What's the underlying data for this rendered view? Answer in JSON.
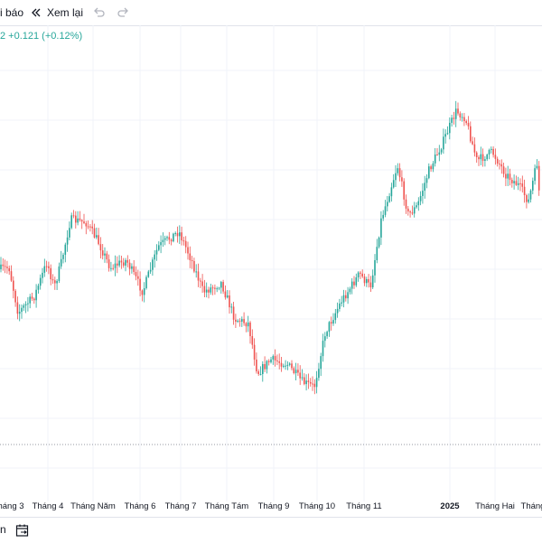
{
  "toolbar": {
    "alert_label": "i báo",
    "replay_label": "Xem lại",
    "undo_icon": "undo-icon",
    "redo_icon": "redo-icon",
    "replay_icon": "rewind-icon"
  },
  "quote": {
    "text": "2  +0.121 (+0.12%)"
  },
  "colors": {
    "up": "#26a69a",
    "down": "#ef5350",
    "grid": "#f0f3fa",
    "text": "#131722"
  },
  "x_axis": {
    "labels": [
      "háng 3",
      "Tháng 4",
      "Tháng Năm",
      "Tháng 6",
      "Tháng 7",
      "Tháng Tám",
      "Tháng 9",
      "Tháng 10",
      "Tháng 11",
      "2025",
      "Tháng Hai",
      "Tháng"
    ]
  },
  "bottom": {
    "icon": "calendar-range-icon"
  },
  "chart_data": {
    "type": "candlestick",
    "trend": [
      [
        "Tháng 3",
        300
      ],
      [
        "Tháng 3",
        340
      ],
      [
        "Tháng 4",
        300
      ],
      [
        "Tháng 4",
        250
      ],
      [
        "Tháng 4",
        215
      ],
      [
        "Tháng Năm",
        240
      ],
      [
        "Tháng Năm",
        280
      ],
      [
        "Tháng 6",
        290
      ],
      [
        "Tháng 6",
        260
      ],
      [
        "Tháng 7",
        230
      ],
      [
        "Tháng 7",
        270
      ],
      [
        "Tháng Tám",
        280
      ],
      [
        "Tháng Tám",
        330
      ],
      [
        "Tháng 9",
        400
      ],
      [
        "Tháng 9",
        380
      ],
      [
        "Tháng 10",
        420
      ],
      [
        "Tháng 10",
        340
      ],
      [
        "Tháng 11",
        290
      ],
      [
        "Tháng 11",
        200
      ],
      [
        "Tháng 11",
        220
      ],
      [
        "Tháng 11",
        130
      ],
      [
        "2025",
        110
      ],
      [
        "2025",
        160
      ],
      [
        "Tháng Hai",
        140
      ],
      [
        "Tháng Hai",
        200
      ],
      [
        "Tháng",
        180
      ],
      [
        "Tháng",
        280
      ]
    ]
  }
}
